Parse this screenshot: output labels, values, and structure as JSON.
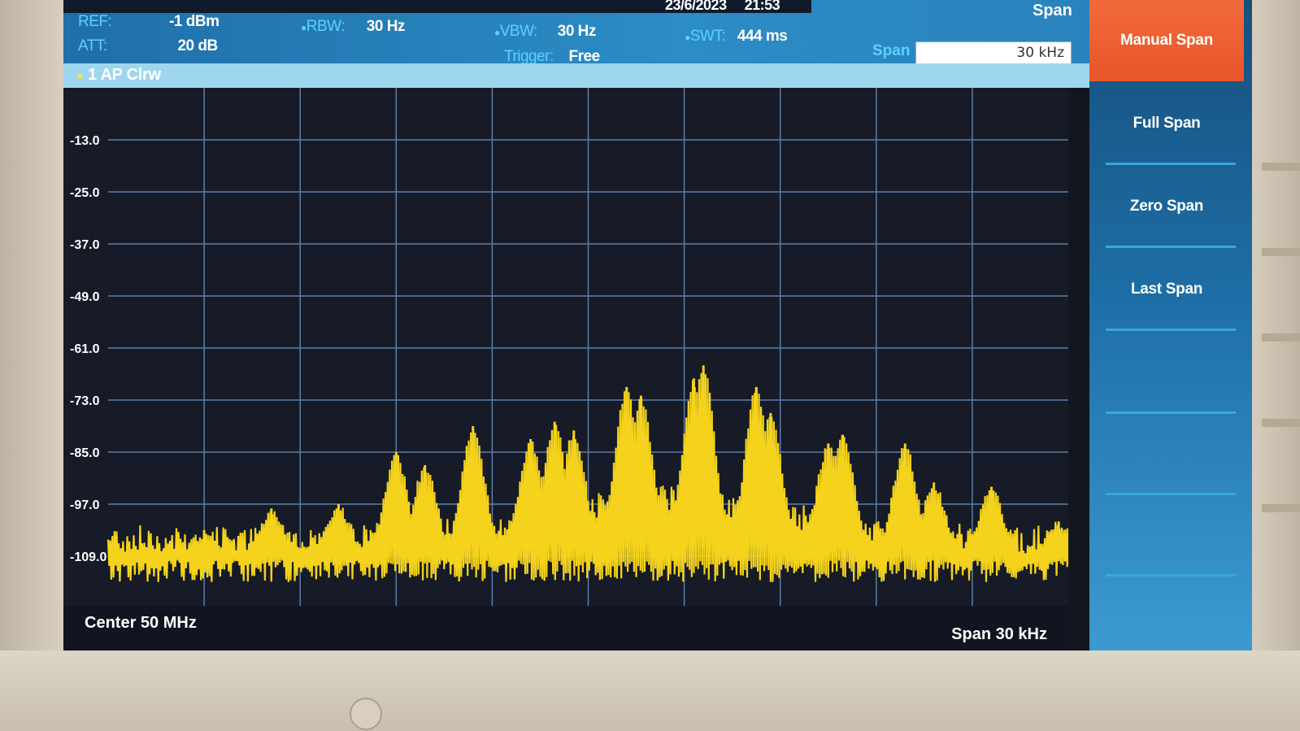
{
  "header": {
    "date": "23/6/2023",
    "time": "21:53"
  },
  "params": {
    "ref_label": "REF:",
    "ref_value": "-1 dBm",
    "att_label": "ATT:",
    "att_value": "20 dB",
    "rbw_label": "RBW:",
    "rbw_value": "30 Hz",
    "vbw_label": "VBW:",
    "vbw_value": "30 Hz",
    "trigger_label": "Trigger:",
    "trigger_value": "Free",
    "swt_label": "SWT:",
    "swt_value": "444 ms"
  },
  "span_panel": {
    "title": "Span",
    "field_label": "Span",
    "field_value": "30 kHz"
  },
  "trace": {
    "label": "1 AP Clrw",
    "color": "#f5d31c"
  },
  "footer": {
    "center": "Center 50 MHz",
    "span": "Span 30 kHz"
  },
  "softkeys": [
    {
      "label": "Manual Span",
      "active": true
    },
    {
      "label": "Full Span",
      "active": false
    },
    {
      "label": "Zero Span",
      "active": false
    },
    {
      "label": "Last Span",
      "active": false
    },
    {
      "label": "",
      "active": false
    },
    {
      "label": "",
      "active": false
    },
    {
      "label": "",
      "active": false
    }
  ],
  "y_axis_labels": [
    "-13.0",
    "-25.0",
    "-37.0",
    "-49.0",
    "-61.0",
    "-73.0",
    "-85.0",
    "-97.0",
    "-109.0"
  ],
  "chart_data": {
    "type": "line",
    "title": "",
    "xlabel": "Center 50 MHz",
    "ylabel": "",
    "ylim": [
      -121,
      -1
    ],
    "grid": true,
    "series": [
      {
        "name": "1 AP Clrw",
        "peaks": [
          {
            "x": 0.1,
            "y": -103
          },
          {
            "x": 0.17,
            "y": -98
          },
          {
            "x": 0.24,
            "y": -97
          },
          {
            "x": 0.3,
            "y": -85
          },
          {
            "x": 0.33,
            "y": -88
          },
          {
            "x": 0.38,
            "y": -79
          },
          {
            "x": 0.44,
            "y": -82
          },
          {
            "x": 0.465,
            "y": -78
          },
          {
            "x": 0.485,
            "y": -80
          },
          {
            "x": 0.54,
            "y": -70
          },
          {
            "x": 0.555,
            "y": -72
          },
          {
            "x": 0.61,
            "y": -68
          },
          {
            "x": 0.62,
            "y": -65
          },
          {
            "x": 0.675,
            "y": -70
          },
          {
            "x": 0.69,
            "y": -76
          },
          {
            "x": 0.75,
            "y": -83
          },
          {
            "x": 0.765,
            "y": -81
          },
          {
            "x": 0.83,
            "y": -83
          },
          {
            "x": 0.86,
            "y": -92
          },
          {
            "x": 0.92,
            "y": -93
          },
          {
            "x": 0.99,
            "y": -101
          }
        ],
        "noise_floor": -107
      }
    ]
  }
}
